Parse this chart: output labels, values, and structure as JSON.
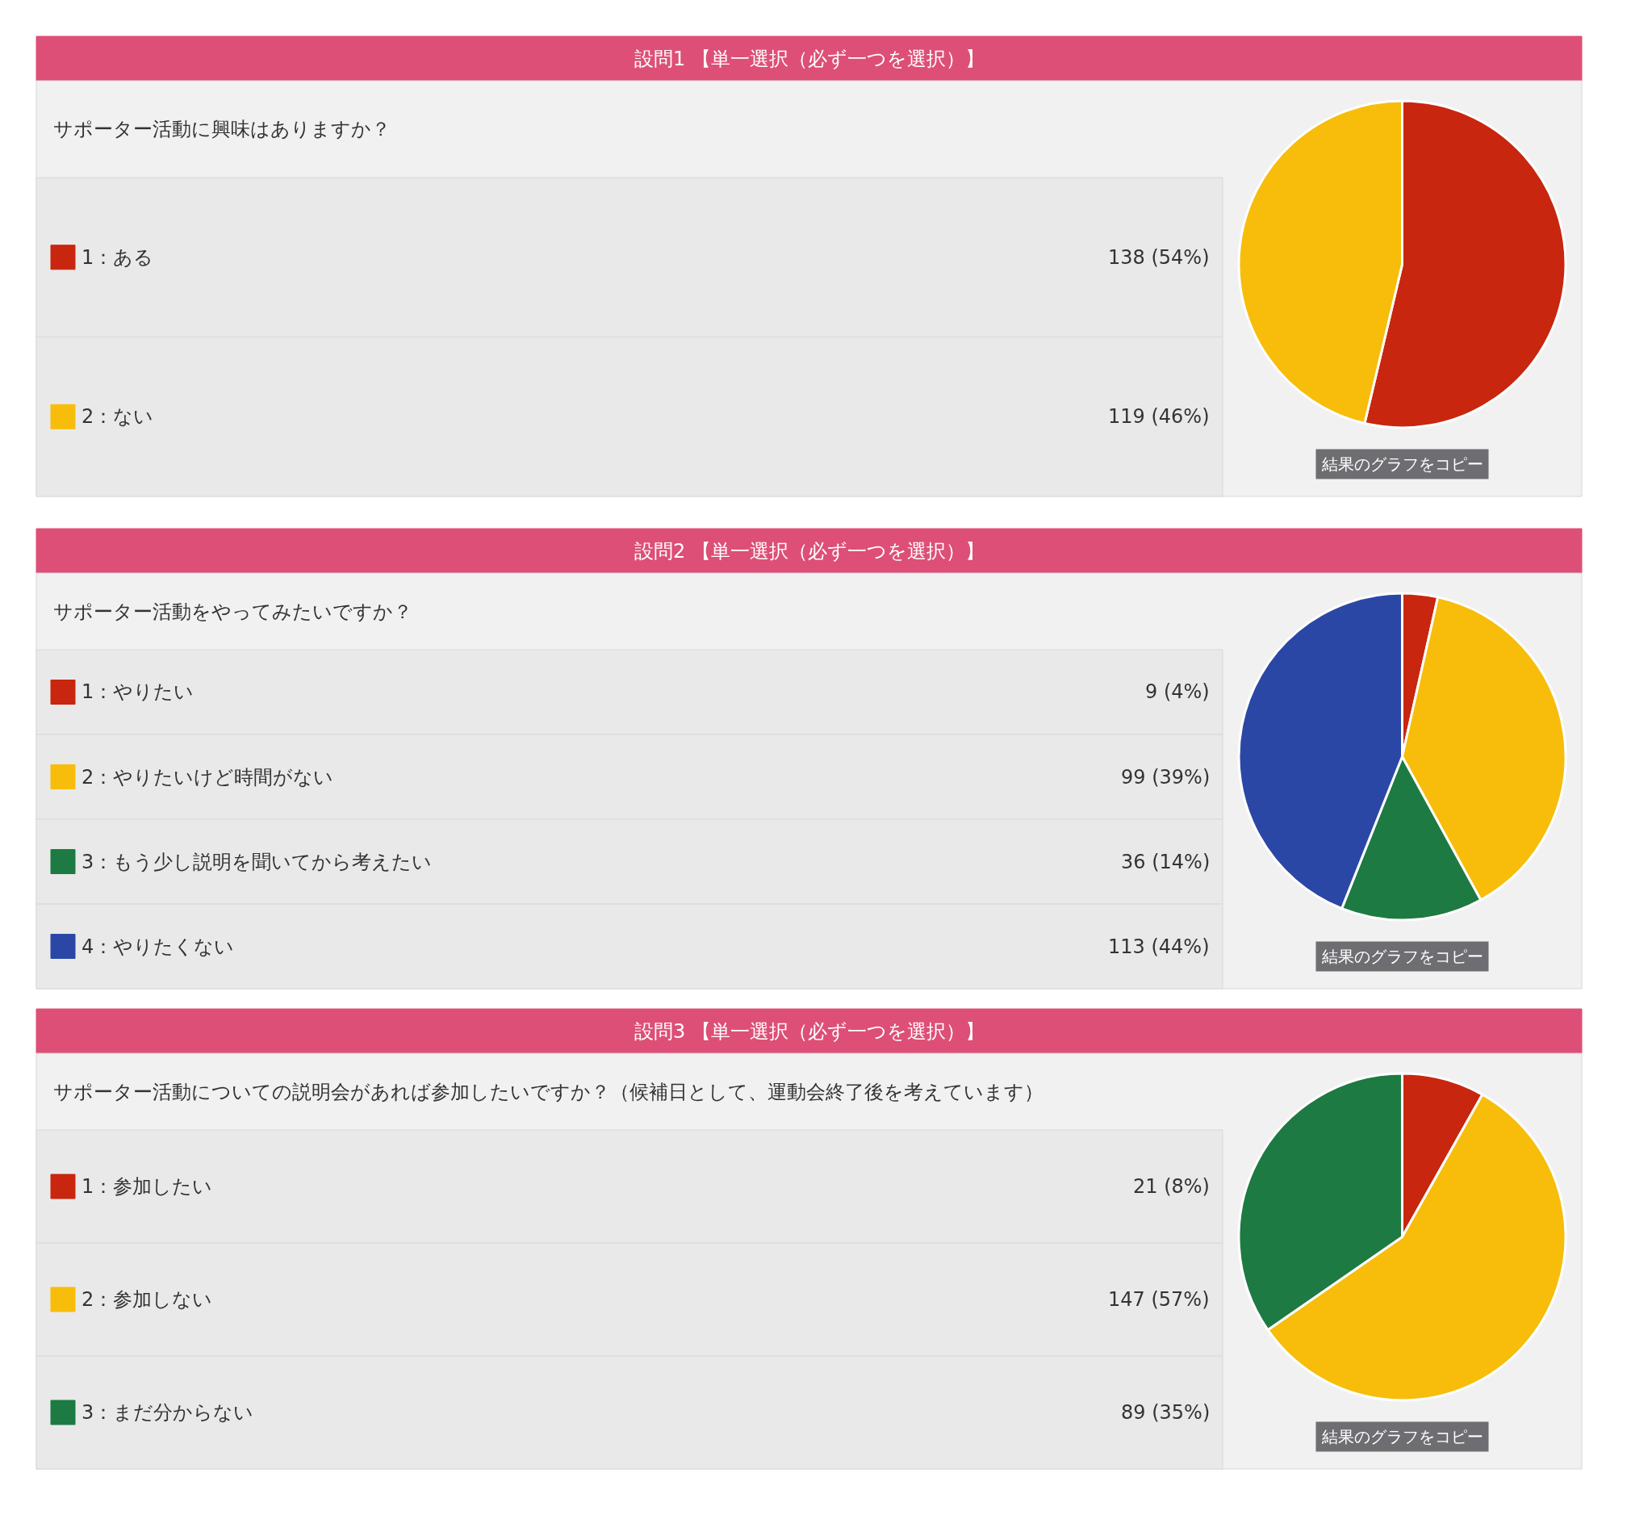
{
  "chart_data": [
    {
      "type": "pie",
      "title": "設問1 【単一選択（必ず一つを選択）】",
      "subtitle": "サポーター活動に興味はありますか？",
      "legend": "left",
      "categories": [
        "1：ある",
        "2：ない"
      ],
      "values": [
        138,
        119
      ],
      "colors": [
        "#c8260f",
        "#f7bd0a"
      ],
      "value_labels": [
        "138 (54%)",
        "119 (46%)"
      ],
      "annotations": [
        "結果のグラフをコピー"
      ]
    },
    {
      "type": "pie",
      "title": "設問2 【単一選択（必ず一つを選択）】",
      "subtitle": "サポーター活動をやってみたいですか？",
      "legend": "left",
      "categories": [
        "1：やりたい",
        "2：やりたいけど時間がない",
        "3：もう少し説明を聞いてから考えたい",
        "4：やりたくない"
      ],
      "values": [
        9,
        99,
        36,
        113
      ],
      "colors": [
        "#c8260f",
        "#f7bd0a",
        "#1d7a42",
        "#2b47a6"
      ],
      "value_labels": [
        "9 (4%)",
        "99 (39%)",
        "36 (14%)",
        "113 (44%)"
      ],
      "annotations": [
        "結果のグラフをコピー"
      ]
    },
    {
      "type": "pie",
      "title": "設問3 【単一選択（必ず一つを選択）】",
      "subtitle": "サポーター活動についての説明会があれば参加したいですか？（候補日として、運動会終了後を考えています）",
      "legend": "left",
      "categories": [
        "1：参加したい",
        "2：参加しない",
        "3：まだ分からない"
      ],
      "values": [
        21,
        147,
        89
      ],
      "colors": [
        "#c8260f",
        "#f7bd0a",
        "#1d7a42"
      ],
      "value_labels": [
        "21 (8%)",
        "147 (57%)",
        "89 (35%)"
      ],
      "annotations": [
        "結果のグラフをコピー"
      ]
    }
  ]
}
